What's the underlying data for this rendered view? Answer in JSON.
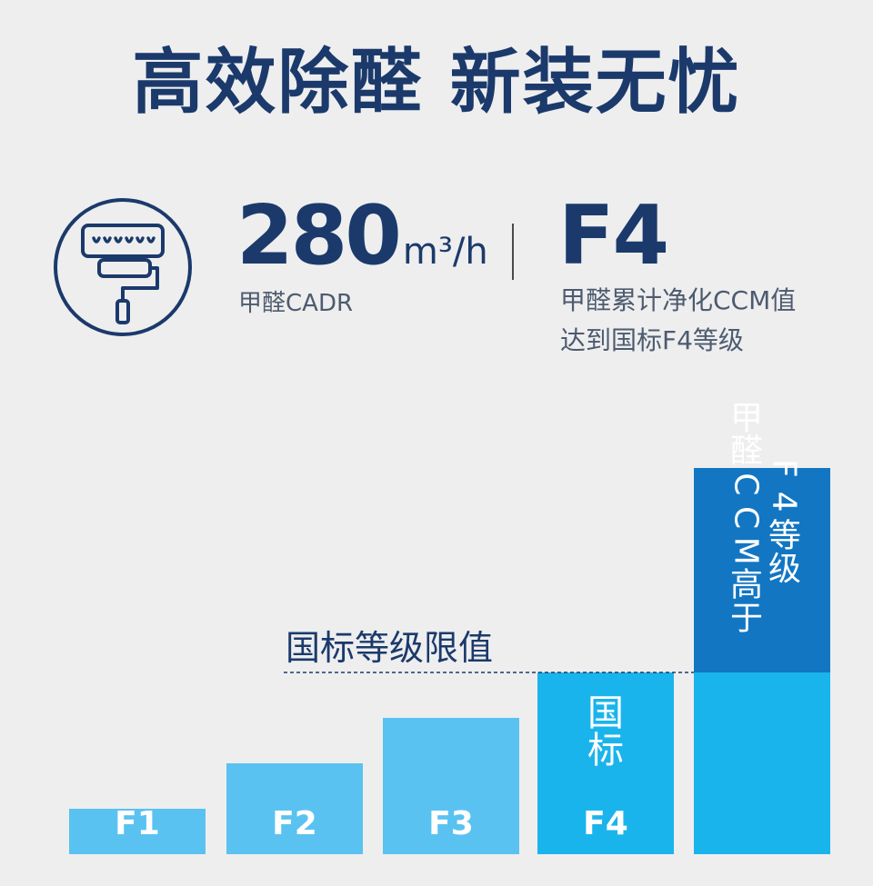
{
  "header": {
    "title": "高效除醛 新装无忧"
  },
  "stats": {
    "cadr_value": "280",
    "cadr_unit": "m³/h",
    "cadr_label": "甲醛CADR",
    "grade_value": "F4",
    "grade_desc_line1": "甲醛累计净化CCM值",
    "grade_desc_line2": "达到国标F4等级"
  },
  "icons": {
    "main": "ac-unit-paint-roller-icon"
  },
  "colors": {
    "navy": "#1b3a6b",
    "light_bar": "#5ac2f1",
    "mid_bar": "#1ab4ec",
    "dark_bar": "#1276c3",
    "background": "#eeeeef"
  },
  "chart_data": {
    "type": "bar",
    "categories": [
      "F1",
      "F2",
      "F3",
      "F4",
      ""
    ],
    "values": [
      1,
      2,
      3,
      4,
      8.5
    ],
    "threshold_value": 4,
    "threshold_label": "国标等级限值",
    "f4_bar_label": "国标",
    "top_bar_label_col1": "甲醛CCM高于",
    "top_bar_label_col2": "F4等级",
    "grid": false,
    "legend": "none"
  }
}
